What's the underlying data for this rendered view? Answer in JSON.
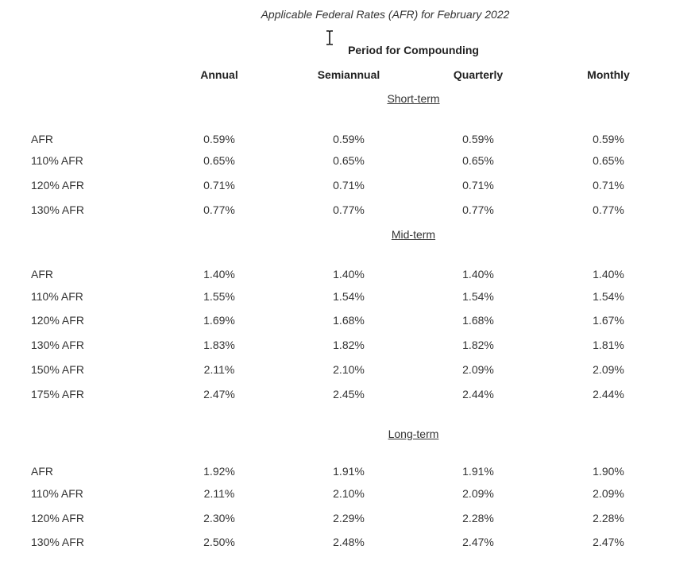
{
  "title": "Applicable Federal Rates (AFR) for February 2022",
  "period_heading": "Period for Compounding",
  "columns": [
    "Annual",
    "Semiannual",
    "Quarterly",
    "Monthly"
  ],
  "sections": [
    {
      "name": "Short-term",
      "rows": [
        {
          "label": "AFR",
          "values": [
            "0.59%",
            "0.59%",
            "0.59%",
            "0.59%"
          ]
        },
        {
          "label": "110% AFR",
          "values": [
            "0.65%",
            "0.65%",
            "0.65%",
            "0.65%"
          ]
        },
        {
          "label": "120% AFR",
          "values": [
            "0.71%",
            "0.71%",
            "0.71%",
            "0.71%"
          ]
        },
        {
          "label": "130% AFR",
          "values": [
            "0.77%",
            "0.77%",
            "0.77%",
            "0.77%"
          ]
        }
      ]
    },
    {
      "name": "Mid-term",
      "rows": [
        {
          "label": "AFR",
          "values": [
            "1.40%",
            "1.40%",
            "1.40%",
            "1.40%"
          ]
        },
        {
          "label": "110% AFR",
          "values": [
            "1.55%",
            "1.54%",
            "1.54%",
            "1.54%"
          ]
        },
        {
          "label": "120% AFR",
          "values": [
            "1.69%",
            "1.68%",
            "1.68%",
            "1.67%"
          ]
        },
        {
          "label": "130% AFR",
          "values": [
            "1.83%",
            "1.82%",
            "1.82%",
            "1.81%"
          ]
        },
        {
          "label": "150% AFR",
          "values": [
            "2.11%",
            "2.10%",
            "2.09%",
            "2.09%"
          ]
        },
        {
          "label": "175% AFR",
          "values": [
            "2.47%",
            "2.45%",
            "2.44%",
            "2.44%"
          ]
        }
      ]
    },
    {
      "name": "Long-term",
      "rows": [
        {
          "label": "AFR",
          "values": [
            "1.92%",
            "1.91%",
            "1.91%",
            "1.90%"
          ]
        },
        {
          "label": "110% AFR",
          "values": [
            "2.11%",
            "2.10%",
            "2.09%",
            "2.09%"
          ]
        },
        {
          "label": "120% AFR",
          "values": [
            "2.30%",
            "2.29%",
            "2.28%",
            "2.28%"
          ]
        },
        {
          "label": "130% AFR",
          "values": [
            "2.50%",
            "2.48%",
            "2.47%",
            "2.47%"
          ]
        }
      ]
    }
  ],
  "icons": {
    "cursor": "text-cursor-icon"
  }
}
